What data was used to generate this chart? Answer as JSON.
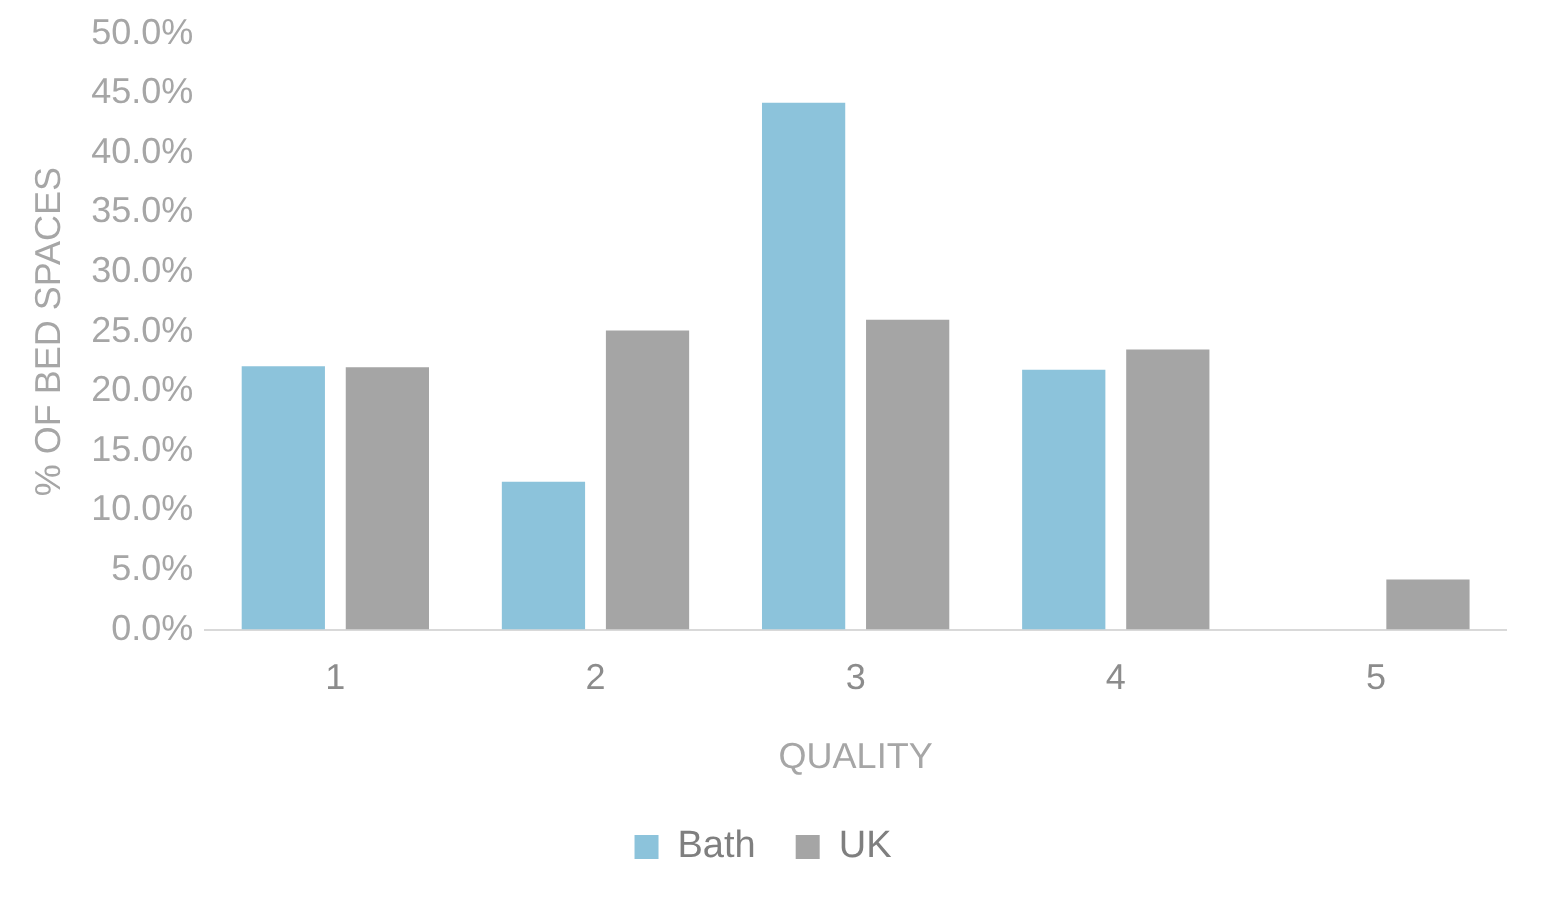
{
  "chart_data": {
    "type": "bar",
    "xlabel": "QUALITY",
    "ylabel": "% OF BED SPACES",
    "categories": [
      "1",
      "2",
      "3",
      "4",
      "5"
    ],
    "series": [
      {
        "name": "Bath",
        "color": "#8cc3db",
        "values": [
          22.1,
          12.4,
          44.2,
          21.8,
          null
        ]
      },
      {
        "name": "UK",
        "color": "#a5a5a5",
        "values": [
          22.0,
          25.1,
          26.0,
          23.5,
          4.2
        ]
      }
    ],
    "ylim": [
      0,
      50
    ],
    "yticks": [
      {
        "value": 0,
        "label": "0.0%"
      },
      {
        "value": 5,
        "label": "5.0%"
      },
      {
        "value": 10,
        "label": "10.0%"
      },
      {
        "value": 15,
        "label": "15.0%"
      },
      {
        "value": 20,
        "label": "20.0%"
      },
      {
        "value": 25,
        "label": "25.0%"
      },
      {
        "value": 30,
        "label": "30.0%"
      },
      {
        "value": 35,
        "label": "35.0%"
      },
      {
        "value": 40,
        "label": "40.0%"
      },
      {
        "value": 45,
        "label": "45.0%"
      },
      {
        "value": 50,
        "label": "50.0%"
      }
    ],
    "grid": false,
    "legend": "bottom"
  }
}
